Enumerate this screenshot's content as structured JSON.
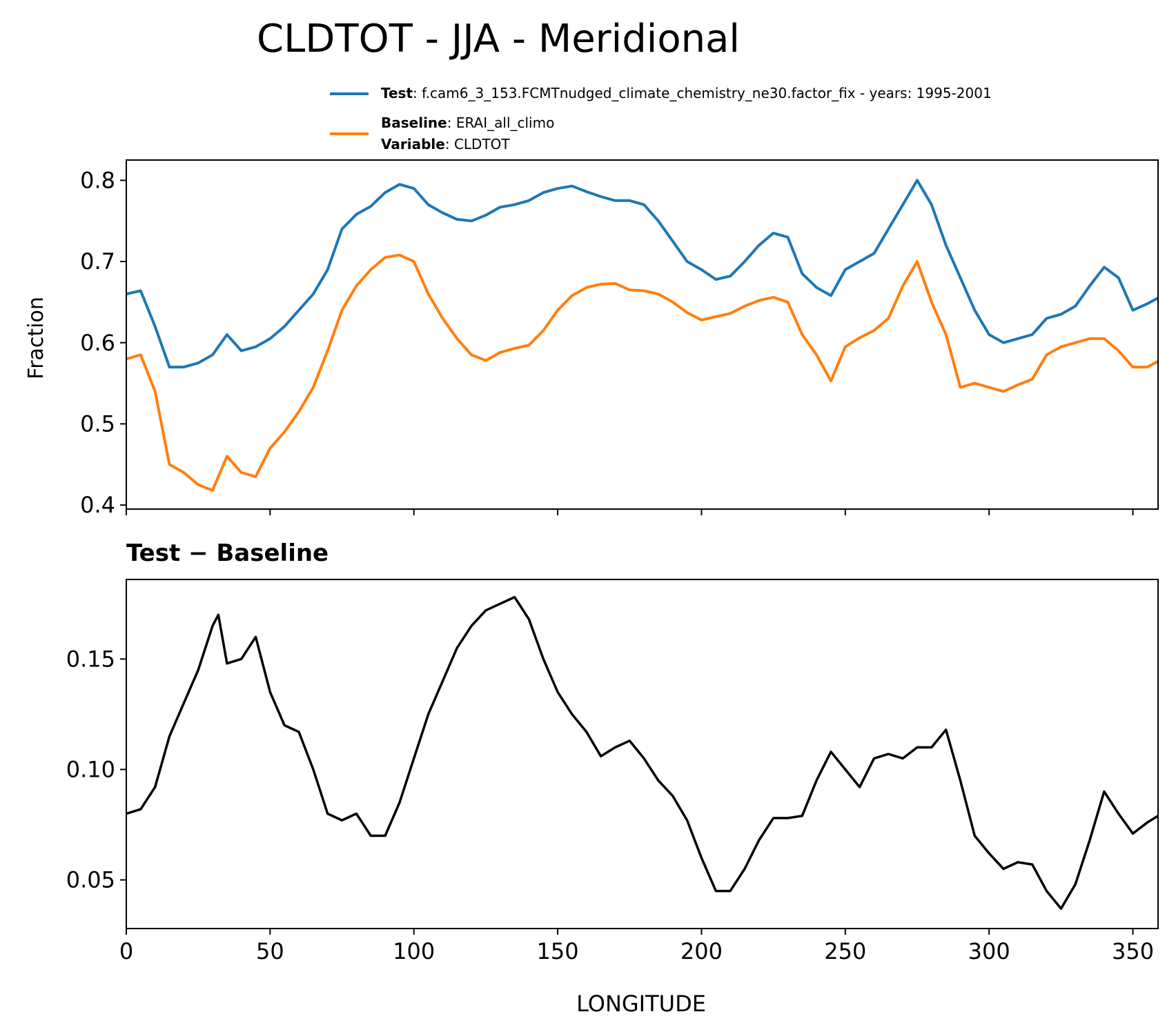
{
  "chart_data": {
    "suptitle": "CLDTOT - JJA - Meridional",
    "legend": {
      "placement": "above-top-right",
      "entries": [
        {
          "series": "Test",
          "label_bold": "Test",
          "label_rest": ": f.cam6_3_153.FCMTnudged_climate_chemistry_ne30.factor_fix - years: 1995-2001",
          "color": "#1f77b4"
        },
        {
          "series": "Baseline",
          "label_bold": "Baseline",
          "label_rest": ": ERAI_all_climo",
          "label_bold2": "Variable",
          "label_rest2": ": CLDTOT",
          "color": "#ff7f0e"
        }
      ]
    },
    "panels": [
      {
        "type": "line",
        "title": "",
        "xlabel": "",
        "ylabel": "Fraction",
        "xlim": [
          0,
          358.75
        ],
        "ylim": [
          0.395,
          0.825
        ],
        "xticks": [
          0,
          50,
          100,
          150,
          200,
          250,
          300,
          350
        ],
        "show_xticklabels": false,
        "yticks": [
          0.4,
          0.5,
          0.6,
          0.7,
          0.8
        ],
        "ytick_labels": [
          "0.4",
          "0.5",
          "0.6",
          "0.7",
          "0.8"
        ],
        "x": [
          0,
          5,
          10,
          15,
          20,
          25,
          30,
          35,
          40,
          45,
          50,
          55,
          60,
          65,
          70,
          75,
          80,
          85,
          90,
          95,
          100,
          105,
          110,
          115,
          120,
          125,
          130,
          135,
          140,
          145,
          150,
          155,
          160,
          165,
          170,
          175,
          180,
          185,
          190,
          195,
          200,
          205,
          210,
          215,
          220,
          225,
          230,
          235,
          240,
          245,
          250,
          255,
          260,
          265,
          270,
          275,
          280,
          285,
          290,
          295,
          300,
          305,
          310,
          315,
          320,
          325,
          330,
          335,
          340,
          345,
          350,
          355,
          358.75
        ],
        "series": [
          {
            "name": "Test",
            "color": "#1f77b4",
            "values": [
              0.66,
              0.664,
              0.62,
              0.57,
              0.57,
              0.575,
              0.585,
              0.61,
              0.59,
              0.595,
              0.605,
              0.62,
              0.64,
              0.66,
              0.69,
              0.74,
              0.758,
              0.768,
              0.785,
              0.795,
              0.79,
              0.77,
              0.76,
              0.752,
              0.75,
              0.757,
              0.767,
              0.77,
              0.775,
              0.785,
              0.79,
              0.793,
              0.786,
              0.78,
              0.775,
              0.775,
              0.77,
              0.75,
              0.725,
              0.7,
              0.69,
              0.678,
              0.682,
              0.7,
              0.72,
              0.735,
              0.73,
              0.685,
              0.668,
              0.658,
              0.69,
              0.7,
              0.71,
              0.74,
              0.77,
              0.8,
              0.77,
              0.72,
              0.68,
              0.64,
              0.61,
              0.6,
              0.605,
              0.61,
              0.63,
              0.635,
              0.645,
              0.67,
              0.693,
              0.68,
              0.64,
              0.648,
              0.655
            ]
          },
          {
            "name": "Baseline",
            "color": "#ff7f0e",
            "values": [
              0.58,
              0.585,
              0.54,
              0.45,
              0.44,
              0.425,
              0.418,
              0.46,
              0.44,
              0.435,
              0.47,
              0.49,
              0.515,
              0.545,
              0.59,
              0.64,
              0.67,
              0.69,
              0.705,
              0.708,
              0.7,
              0.66,
              0.63,
              0.605,
              0.585,
              0.578,
              0.588,
              0.593,
              0.597,
              0.615,
              0.64,
              0.658,
              0.668,
              0.672,
              0.673,
              0.665,
              0.664,
              0.66,
              0.65,
              0.637,
              0.628,
              0.632,
              0.636,
              0.645,
              0.652,
              0.656,
              0.65,
              0.61,
              0.585,
              0.553,
              0.595,
              0.606,
              0.615,
              0.63,
              0.67,
              0.7,
              0.65,
              0.61,
              0.545,
              0.55,
              0.545,
              0.54,
              0.548,
              0.555,
              0.585,
              0.595,
              0.6,
              0.605,
              0.605,
              0.59,
              0.57,
              0.57,
              0.577
            ]
          }
        ]
      },
      {
        "type": "line",
        "title": "Test − Baseline",
        "xlabel": "LONGITUDE",
        "ylabel": "",
        "xlim": [
          0,
          358.75
        ],
        "ylim": [
          0.028,
          0.186
        ],
        "xticks": [
          0,
          50,
          100,
          150,
          200,
          250,
          300,
          350
        ],
        "xtick_labels": [
          "0",
          "50",
          "100",
          "150",
          "200",
          "250",
          "300",
          "350"
        ],
        "show_xticklabels": true,
        "yticks": [
          0.05,
          0.1,
          0.15
        ],
        "ytick_labels": [
          "0.05",
          "0.10",
          "0.15"
        ],
        "x": [
          0,
          5,
          10,
          15,
          20,
          25,
          30,
          32,
          35,
          40,
          45,
          50,
          55,
          60,
          65,
          70,
          75,
          80,
          85,
          90,
          95,
          100,
          105,
          110,
          115,
          120,
          125,
          130,
          135,
          140,
          145,
          150,
          155,
          160,
          165,
          170,
          175,
          180,
          185,
          190,
          195,
          200,
          205,
          210,
          215,
          220,
          225,
          230,
          235,
          240,
          245,
          250,
          255,
          260,
          265,
          270,
          275,
          280,
          285,
          290,
          295,
          300,
          305,
          310,
          315,
          320,
          325,
          330,
          335,
          340,
          345,
          350,
          355,
          358.75
        ],
        "series": [
          {
            "name": "Test − Baseline",
            "color": "#000000",
            "values": [
              0.08,
              0.082,
              0.092,
              0.115,
              0.13,
              0.145,
              0.165,
              0.17,
              0.148,
              0.15,
              0.16,
              0.135,
              0.12,
              0.117,
              0.1,
              0.08,
              0.077,
              0.08,
              0.07,
              0.07,
              0.085,
              0.105,
              0.125,
              0.14,
              0.155,
              0.165,
              0.172,
              0.175,
              0.178,
              0.168,
              0.15,
              0.135,
              0.125,
              0.117,
              0.106,
              0.11,
              0.113,
              0.105,
              0.095,
              0.088,
              0.077,
              0.06,
              0.045,
              0.045,
              0.055,
              0.068,
              0.078,
              0.078,
              0.079,
              0.095,
              0.108,
              0.1,
              0.092,
              0.105,
              0.107,
              0.105,
              0.11,
              0.11,
              0.118,
              0.095,
              0.07,
              0.062,
              0.055,
              0.058,
              0.057,
              0.045,
              0.037,
              0.048,
              0.068,
              0.09,
              0.08,
              0.071,
              0.076,
              0.079
            ]
          }
        ]
      }
    ]
  }
}
